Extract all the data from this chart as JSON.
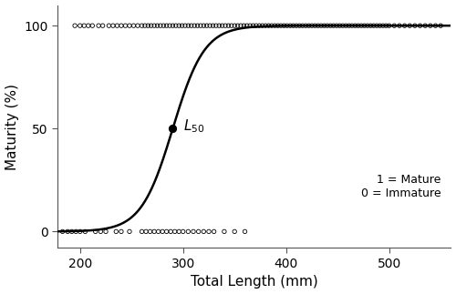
{
  "title": "",
  "xlabel": "Total Length (mm)",
  "ylabel": "Maturity (%)",
  "xlim": [
    178,
    560
  ],
  "ylim": [
    -8,
    110
  ],
  "xticks": [
    200,
    300,
    400,
    500
  ],
  "yticks": [
    0,
    50,
    100
  ],
  "L50": 290,
  "logistic_k": 0.065,
  "mature_points_100": [
    195,
    200,
    204,
    208,
    212,
    218,
    222,
    228,
    232,
    236,
    240,
    244,
    248,
    252,
    256,
    260,
    263,
    266,
    269,
    272,
    275,
    278,
    281,
    284,
    287,
    290,
    293,
    296,
    299,
    302,
    305,
    308,
    311,
    314,
    317,
    320,
    323,
    326,
    329,
    332,
    335,
    338,
    341,
    344,
    347,
    350,
    353,
    356,
    359,
    362,
    365,
    368,
    371,
    374,
    377,
    380,
    383,
    386,
    389,
    392,
    395,
    398,
    401,
    404,
    407,
    410,
    413,
    416,
    419,
    422,
    425,
    428,
    431,
    434,
    437,
    440,
    443,
    446,
    449,
    452,
    455,
    458,
    461,
    464,
    467,
    470,
    473,
    476,
    479,
    482,
    485,
    488,
    491,
    494,
    497,
    500,
    505,
    510,
    515,
    520,
    525,
    530,
    535,
    540,
    545,
    550
  ],
  "immature_points_0": [
    183,
    188,
    192,
    196,
    200,
    205,
    215,
    220,
    225,
    235,
    240,
    248,
    260,
    264,
    268,
    272,
    276,
    280,
    284,
    288,
    292,
    296,
    300,
    305,
    310,
    315,
    320,
    325,
    330,
    340,
    350,
    360
  ],
  "line_color": "#000000",
  "point_color": "#000000",
  "L50_point_color": "#000000",
  "annotation_text": "$L_{50}$",
  "legend_text_1": "1 = Mature",
  "legend_text_0": "0 = Immature",
  "legend_fontsize": 9,
  "axis_fontsize": 11,
  "tick_fontsize": 10,
  "background_color": "#ffffff"
}
